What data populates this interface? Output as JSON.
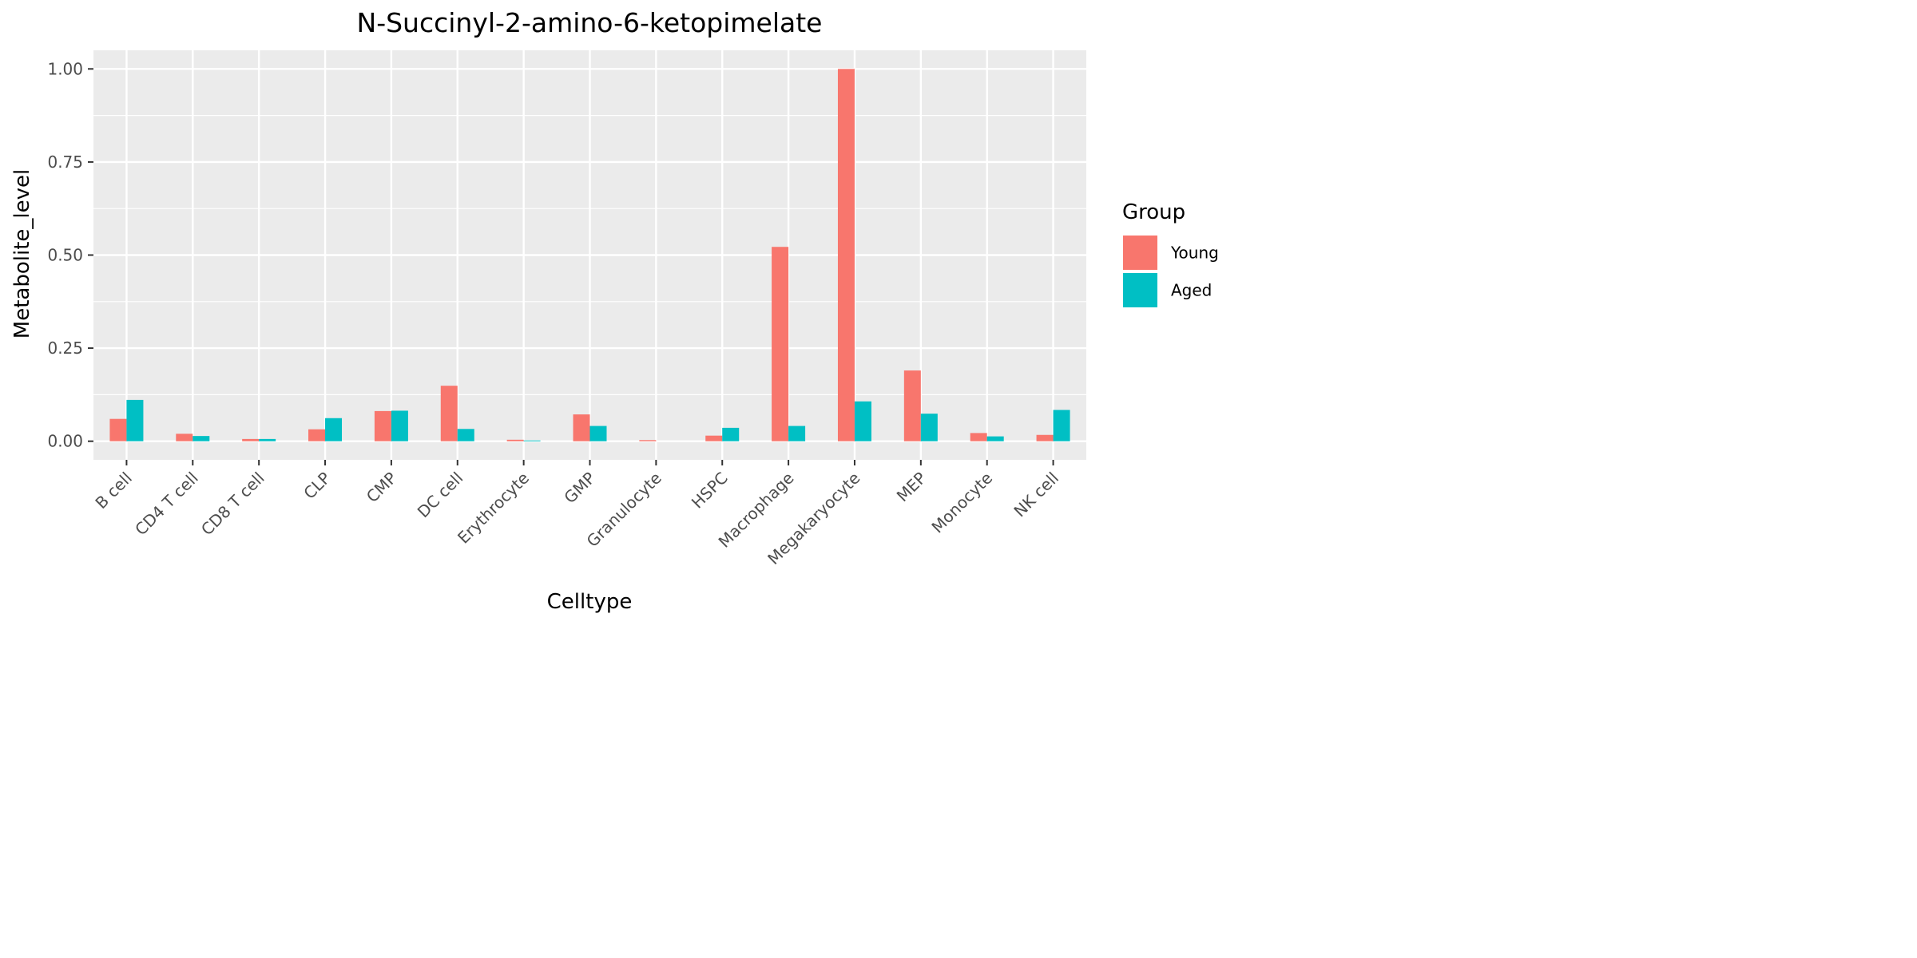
{
  "chart_data": {
    "type": "bar",
    "title": "N-Succinyl-2-amino-6-ketopimelate",
    "xlabel": "Celltype",
    "ylabel": "Metabolite_level",
    "categories": [
      "B cell",
      "CD4 T cell",
      "CD8 T cell",
      "CLP",
      "CMP",
      "DC cell",
      "Erythrocyte",
      "GMP",
      "Granulocyte",
      "HSPC",
      "Macrophage",
      "Megakaryocyte",
      "MEP",
      "Monocyte",
      "NK cell"
    ],
    "series": [
      {
        "name": "Young",
        "color": "#F8766D",
        "values": [
          0.06,
          0.02,
          0.006,
          0.032,
          0.081,
          0.149,
          0.004,
          0.072,
          0.003,
          0.015,
          0.522,
          1.0,
          0.19,
          0.022,
          0.017
        ]
      },
      {
        "name": "Aged",
        "color": "#00BFC4",
        "values": [
          0.111,
          0.014,
          0.006,
          0.062,
          0.082,
          0.033,
          0.002,
          0.041,
          0.0,
          0.036,
          0.041,
          0.107,
          0.074,
          0.013,
          0.084
        ]
      }
    ],
    "ylim": [
      -0.05,
      1.05
    ],
    "yticks": [
      0.0,
      0.25,
      0.5,
      0.75,
      1.0
    ],
    "ytick_labels": [
      "0.00",
      "0.25",
      "0.50",
      "0.75",
      "1.00"
    ],
    "legend": {
      "title": "Group",
      "position": "right"
    },
    "grid": true,
    "panel_background": "#EBEBEB"
  }
}
